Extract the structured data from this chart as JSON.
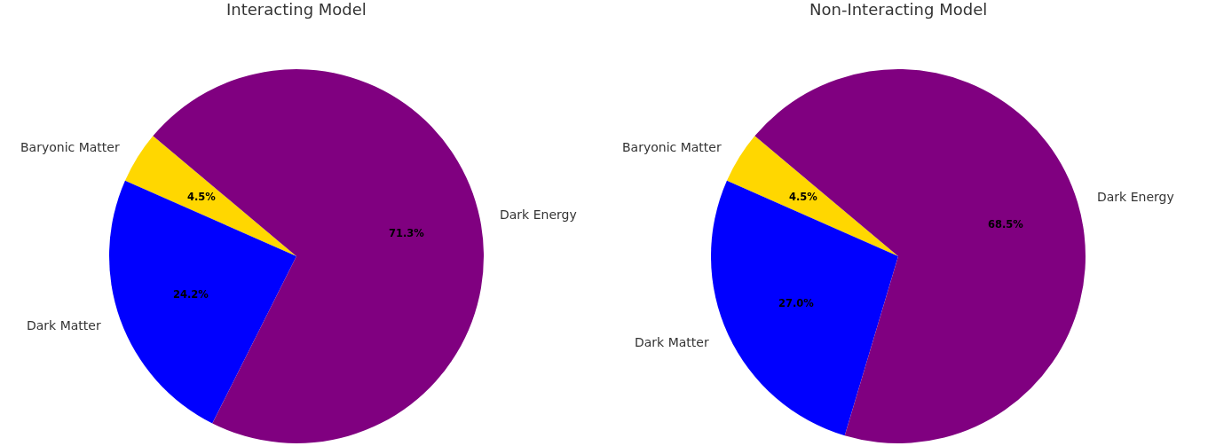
{
  "chart_data": [
    {
      "type": "pie",
      "title": "Interacting Model",
      "categories": [
        "Baryonic Matter",
        "Dark Matter",
        "Dark Energy"
      ],
      "values": [
        4.5,
        24.2,
        71.3
      ],
      "colors": [
        "#ffd700",
        "#0000ff",
        "#800080"
      ],
      "value_labels": [
        "4.5%",
        "24.2%",
        "71.3%"
      ]
    },
    {
      "type": "pie",
      "title": "Non-Interacting Model",
      "categories": [
        "Baryonic Matter",
        "Dark Matter",
        "Dark Energy"
      ],
      "values": [
        4.5,
        27.0,
        68.5
      ],
      "colors": [
        "#ffd700",
        "#0000ff",
        "#800080"
      ],
      "value_labels": [
        "4.5%",
        "27.0%",
        "68.5%"
      ]
    }
  ]
}
